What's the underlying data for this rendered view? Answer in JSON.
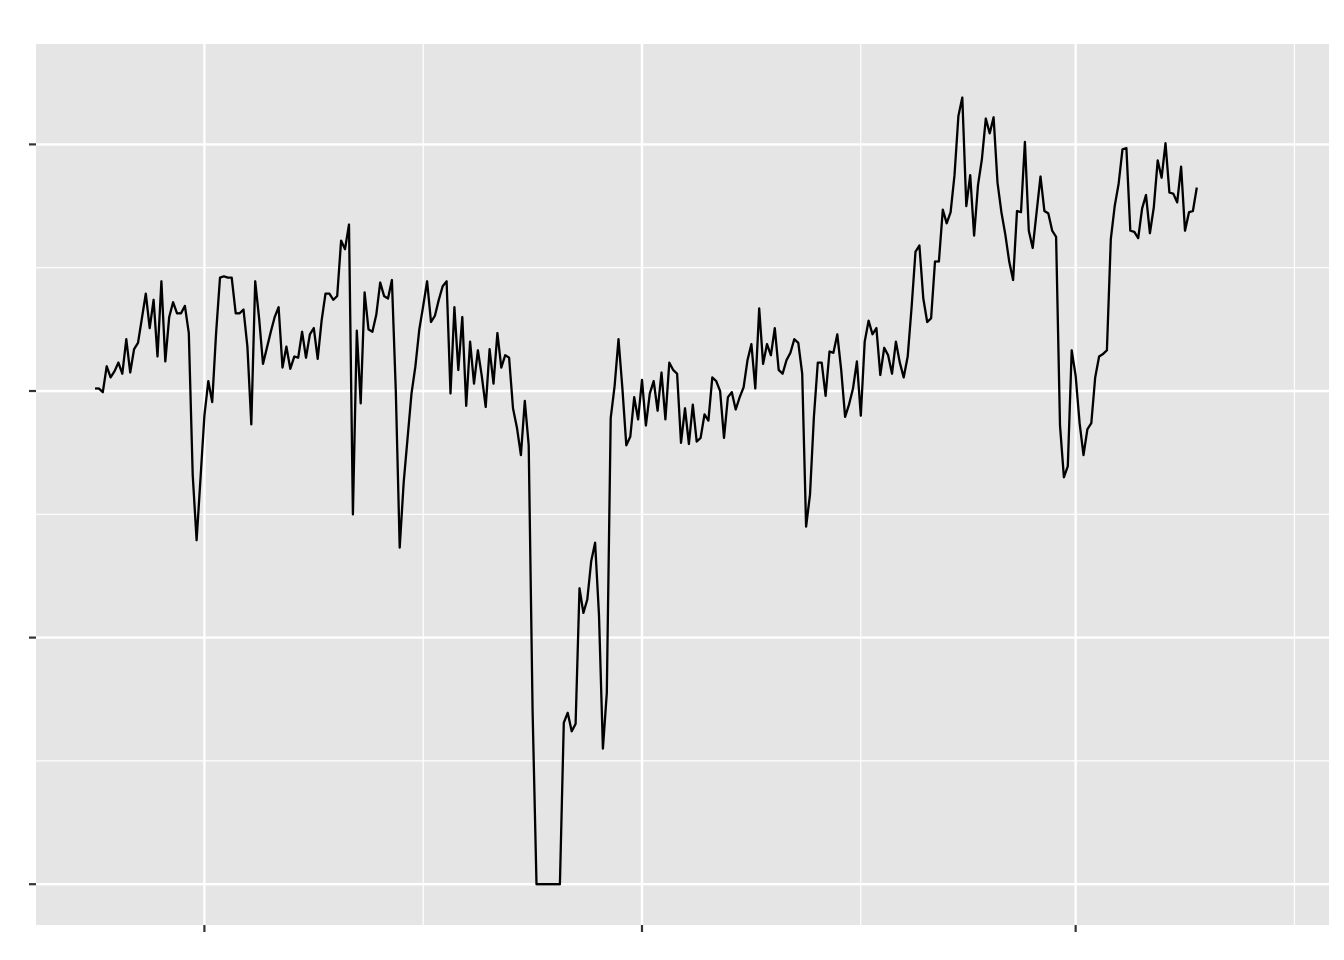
{
  "chart_data": {
    "type": "line",
    "title": "",
    "xlabel": "",
    "ylabel": "",
    "x_tick_labels": [
      "",
      "",
      ""
    ],
    "y_tick_labels": [
      "",
      "",
      ""
    ],
    "grid": true,
    "legend": "none",
    "colors": {
      "panel": "#e5e5e5",
      "grid": "#ffffff",
      "line": "#000000",
      "ticks": "#333333"
    },
    "xlim": [
      0,
      301
    ],
    "ylim": [
      -3.2,
      3.9
    ],
    "x_major_ticks": [
      28,
      140,
      251
    ],
    "x_minor_ticks": [
      84,
      196,
      307
    ],
    "y_major_ticks": [
      -3,
      -1,
      1,
      3
    ],
    "y_minor_ticks": [
      -2,
      0,
      2
    ],
    "series": [
      {
        "name": "",
        "values": [
          1.02,
          1.02,
          0.99,
          1.2,
          1.11,
          1.16,
          1.23,
          1.14,
          1.42,
          1.15,
          1.34,
          1.39,
          1.59,
          1.79,
          1.51,
          1.74,
          1.28,
          1.89,
          1.24,
          1.6,
          1.72,
          1.63,
          1.63,
          1.69,
          1.47,
          0.32,
          -0.21,
          0.29,
          0.8,
          1.08,
          0.91,
          1.47,
          1.92,
          1.93,
          1.92,
          1.92,
          1.63,
          1.63,
          1.66,
          1.36,
          0.73,
          1.89,
          1.59,
          1.22,
          1.35,
          1.48,
          1.6,
          1.68,
          1.19,
          1.36,
          1.18,
          1.28,
          1.27,
          1.48,
          1.27,
          1.46,
          1.51,
          1.26,
          1.57,
          1.79,
          1.79,
          1.74,
          1.77,
          2.22,
          2.15,
          2.35,
          0.0,
          1.49,
          0.9,
          1.8,
          1.5,
          1.48,
          1.62,
          1.88,
          1.77,
          1.75,
          1.9,
          1.0,
          -0.27,
          0.26,
          0.62,
          0.98,
          1.2,
          1.5,
          1.69,
          1.89,
          1.56,
          1.61,
          1.74,
          1.85,
          1.89,
          0.98,
          1.68,
          1.17,
          1.6,
          0.88,
          1.4,
          1.06,
          1.33,
          1.12,
          0.87,
          1.34,
          1.06,
          1.47,
          1.19,
          1.29,
          1.27,
          0.86,
          0.7,
          0.48,
          0.92,
          0.56,
          -1.6,
          -3.0,
          -3.0,
          -3.0,
          -3.0,
          -3.0,
          -3.0,
          -3.0,
          -1.69,
          -1.61,
          -1.76,
          -1.7,
          -0.6,
          -0.8,
          -0.69,
          -0.38,
          -0.23,
          -0.82,
          -1.9,
          -1.45,
          0.78,
          1.04,
          1.42,
          1.02,
          0.56,
          0.63,
          0.95,
          0.77,
          1.09,
          0.72,
          0.98,
          1.08,
          0.84,
          1.15,
          0.77,
          1.23,
          1.17,
          1.14,
          0.58,
          0.86,
          0.57,
          0.89,
          0.59,
          0.62,
          0.81,
          0.76,
          1.11,
          1.08,
          1.0,
          0.62,
          0.95,
          0.99,
          0.85,
          0.95,
          1.03,
          1.25,
          1.38,
          1.02,
          1.67,
          1.22,
          1.38,
          1.29,
          1.51,
          1.17,
          1.14,
          1.25,
          1.31,
          1.42,
          1.39,
          1.14,
          -0.1,
          0.16,
          0.79,
          1.23,
          1.23,
          0.96,
          1.32,
          1.31,
          1.46,
          1.17,
          0.79,
          0.89,
          1.02,
          1.24,
          0.8,
          1.4,
          1.57,
          1.46,
          1.51,
          1.13,
          1.35,
          1.29,
          1.14,
          1.4,
          1.23,
          1.11,
          1.28,
          1.68,
          2.13,
          2.18,
          1.75,
          1.56,
          1.59,
          2.05,
          2.05,
          2.47,
          2.36,
          2.45,
          2.75,
          3.23,
          3.38,
          2.5,
          2.75,
          2.26,
          2.67,
          2.88,
          3.21,
          3.09,
          3.22,
          2.69,
          2.45,
          2.27,
          2.05,
          1.9,
          2.46,
          2.45,
          3.02,
          2.3,
          2.16,
          2.45,
          2.74,
          2.46,
          2.44,
          2.3,
          2.25,
          0.72,
          0.3,
          0.39,
          1.33,
          1.12,
          0.74,
          0.48,
          0.69,
          0.74,
          1.11,
          1.28,
          1.3,
          1.33,
          2.23,
          2.5,
          2.68,
          2.96,
          2.97,
          2.3,
          2.29,
          2.24,
          2.48,
          2.59,
          2.28,
          2.49,
          2.87,
          2.73,
          3.01,
          2.61,
          2.6,
          2.53,
          2.82,
          2.3,
          2.45,
          2.46,
          2.65
        ]
      }
    ]
  }
}
